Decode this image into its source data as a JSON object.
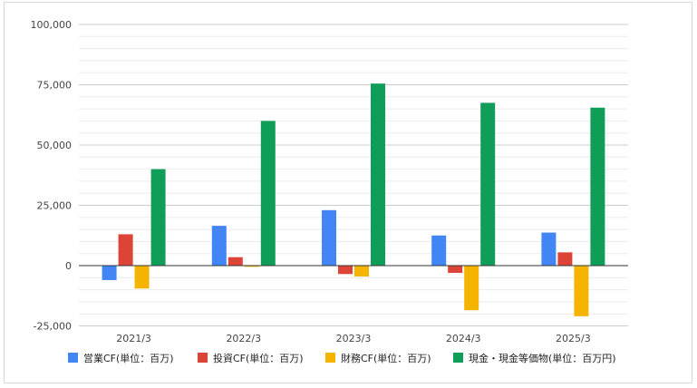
{
  "chart_data": {
    "type": "bar",
    "title": "",
    "xlabel": "",
    "ylabel": "",
    "categories": [
      "2021/3",
      "2022/3",
      "2023/3",
      "2024/3",
      "2025/3"
    ],
    "ylim": [
      -25000,
      100000
    ],
    "yticks": [
      -25000,
      0,
      25000,
      50000,
      75000,
      100000
    ],
    "ytick_labels": [
      "-25,000",
      "0",
      "25,000",
      "50,000",
      "75,000",
      "100,000"
    ],
    "grid": true,
    "legend_position": "bottom",
    "series": [
      {
        "name": "営業CF(単位：百万)",
        "color": "#4285f4",
        "values": [
          -6000,
          16500,
          23000,
          12500,
          13700
        ]
      },
      {
        "name": "投資CF(単位：百万)",
        "color": "#db4437",
        "values": [
          13000,
          3500,
          -3500,
          -3000,
          5500
        ]
      },
      {
        "name": "財務CF(単位：百万)",
        "color": "#f4b400",
        "values": [
          -9500,
          -500,
          -4500,
          -18500,
          -21000
        ]
      },
      {
        "name": "現金・現金等価物(単位：百万円)",
        "color": "#0f9d58",
        "values": [
          40000,
          60000,
          75500,
          67500,
          65500
        ]
      }
    ]
  }
}
